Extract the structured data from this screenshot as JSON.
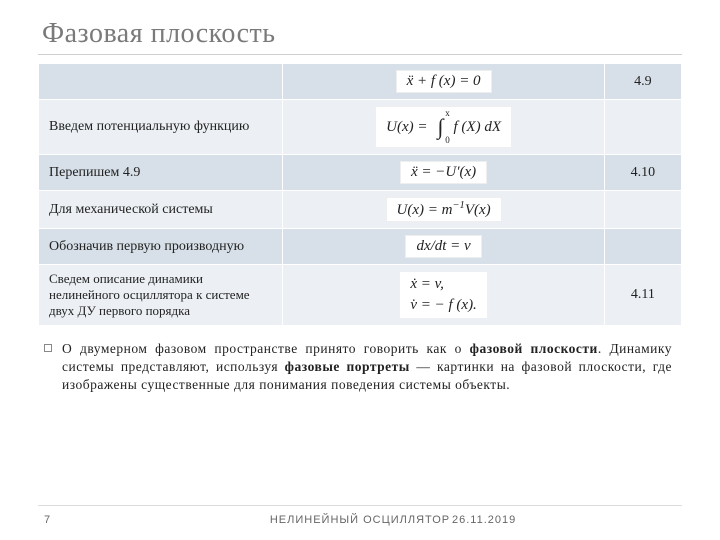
{
  "title": "Фазовая плоскость",
  "table": {
    "rows": [
      {
        "desc": "",
        "eq_no": "4.9",
        "row_class": "row-a"
      },
      {
        "desc": "Введем потенциальную функцию",
        "eq_no": "",
        "row_class": "row-b"
      },
      {
        "desc": "Перепишем 4.9",
        "eq_no": "4.10",
        "row_class": "row-a"
      },
      {
        "desc": "Для механической системы",
        "eq_no": "",
        "row_class": "row-b"
      },
      {
        "desc": "Обозначив первую производную",
        "eq_no": "",
        "row_class": "row-a"
      },
      {
        "desc": "Сведем описание динамики нелинейного осциллятора к системе двух ДУ первого порядка",
        "eq_no": "4.11",
        "row_class": "row-b"
      }
    ],
    "formulas": {
      "f0": {
        "text": "ẍ + f (x) = 0"
      },
      "f1_prefix": "U(x) = ",
      "f1_top": "x",
      "f1_bot": "0",
      "f1_body": " f (X) dX",
      "f2": {
        "text": "ẍ = −U′(x)"
      },
      "f3_html": "U(x) = m<sup>−1</sup>V(x)",
      "f4": {
        "text": "dx/dt = v"
      },
      "f5_line1": "ẋ = v,",
      "f5_line2": "v̇ = − f (x)."
    }
  },
  "paragraph": {
    "p1": "О двумерном фазовом пространстве принято говорить как о ",
    "b1": "фазовой плоскости",
    "p2": ". Динамику системы представляют, используя ",
    "b2": "фазовые портреты",
    "p3": " — картинки на фазовой плоскости, где изображены существенные для понимания поведения системы объекты."
  },
  "footer": {
    "page": "7",
    "center": "НЕЛИНЕЙНЫЙ ОСЦИЛЛЯТОР",
    "date": "26.11.2019"
  }
}
